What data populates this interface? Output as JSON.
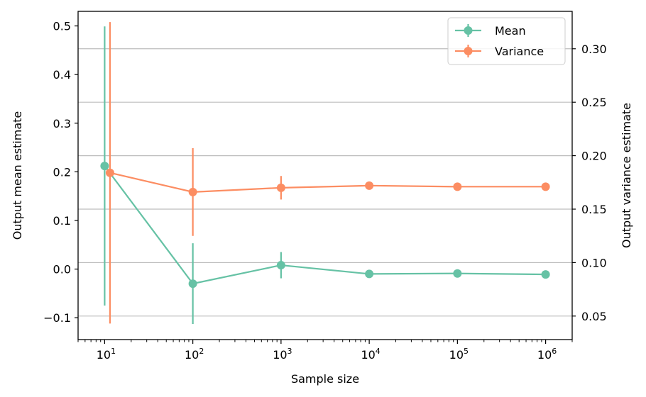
{
  "chart_data": {
    "type": "line",
    "xlabel": "Sample size",
    "ylabel_left": "Output mean estimate",
    "ylabel_right": "Output variance estimate",
    "xscale": "log",
    "xlim": [
      5,
      2000000
    ],
    "x_ticks": [
      10,
      100,
      1000,
      10000,
      100000,
      1000000
    ],
    "x_tick_labels": [
      {
        "base": "10",
        "exp": "1"
      },
      {
        "base": "10",
        "exp": "2"
      },
      {
        "base": "10",
        "exp": "3"
      },
      {
        "base": "10",
        "exp": "4"
      },
      {
        "base": "10",
        "exp": "5"
      },
      {
        "base": "10",
        "exp": "6"
      }
    ],
    "ylim_left": [
      -0.145,
      0.53
    ],
    "ylim_right": [
      0.028,
      0.335
    ],
    "left_ticks": [
      -0.1,
      0.0,
      0.1,
      0.2,
      0.3,
      0.4,
      0.5
    ],
    "left_tick_labels": [
      "−0.1",
      "0.0",
      "0.1",
      "0.2",
      "0.3",
      "0.4",
      "0.5"
    ],
    "right_ticks": [
      0.05,
      0.1,
      0.15,
      0.2,
      0.25,
      0.3
    ],
    "right_tick_labels": [
      "0.05",
      "0.10",
      "0.15",
      "0.20",
      "0.25",
      "0.30"
    ],
    "grid": "horizontal at right-axis ticks",
    "legend_position": "top-right",
    "series": [
      {
        "name": "Mean",
        "axis": "left",
        "color": "#66c2a5",
        "x": [
          10,
          100,
          1000,
          10000,
          100000,
          1000000
        ],
        "y": [
          0.212,
          -0.03,
          0.008,
          -0.01,
          -0.009,
          -0.011
        ],
        "err": [
          0.287,
          0.083,
          0.027,
          0.0,
          0.0,
          0.0
        ]
      },
      {
        "name": "Variance",
        "axis": "right",
        "color": "#fc8d62",
        "x": [
          11.5,
          100,
          1000,
          10000,
          100000,
          1000000
        ],
        "y": [
          0.184,
          0.166,
          0.17,
          0.172,
          0.171,
          0.171
        ],
        "err": [
          0.141,
          0.041,
          0.011,
          0.0,
          0.0,
          0.0
        ]
      }
    ]
  }
}
